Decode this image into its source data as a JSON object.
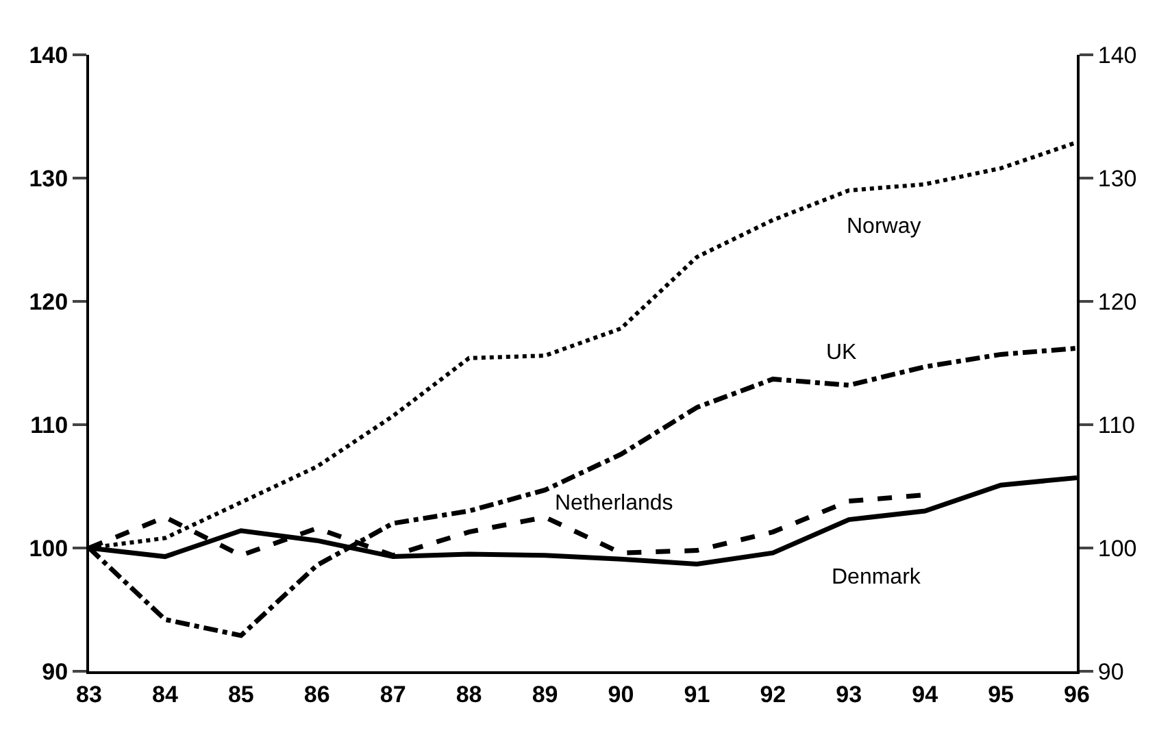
{
  "chart_data": {
    "type": "line",
    "x": [
      83,
      84,
      85,
      86,
      87,
      88,
      89,
      90,
      91,
      92,
      93,
      94,
      95,
      96
    ],
    "series": [
      {
        "name": "Norway",
        "color": "#000000",
        "line_style": "dotted",
        "values": [
          100,
          100.8,
          103.7,
          106.6,
          110.7,
          115.4,
          115.6,
          117.8,
          123.6,
          126.6,
          129,
          129.5,
          130.8,
          132.9
        ]
      },
      {
        "name": "UK",
        "color": "#000000",
        "line_style": "dashdot",
        "values": [
          100,
          94.2,
          92.9,
          98.6,
          102,
          103,
          104.7,
          107.6,
          111.4,
          113.7,
          113.2,
          114.7,
          115.7,
          116.2
        ]
      },
      {
        "name": "Netherlands",
        "color": "#000000",
        "line_style": "dashed",
        "values": [
          100,
          102.5,
          99.4,
          101.6,
          99.4,
          101.3,
          102.5,
          99.6,
          99.8,
          101.3,
          103.8,
          104.3,
          null,
          null
        ]
      },
      {
        "name": "Denmark",
        "color": "#000000",
        "line_style": "solid",
        "values": [
          100,
          99.3,
          101.4,
          100.6,
          99.3,
          99.5,
          99.4,
          99.1,
          98.7,
          99.6,
          102.3,
          103,
          105.1,
          105.7
        ]
      }
    ],
    "xlim": [
      83,
      96
    ],
    "xticks": [
      83,
      84,
      85,
      86,
      87,
      88,
      89,
      90,
      91,
      92,
      93,
      94,
      95,
      96
    ],
    "ylim": [
      90,
      140
    ],
    "yticks": [
      90,
      100,
      110,
      120,
      130,
      140
    ],
    "y2lim": [
      90,
      140
    ],
    "y2ticks": [
      90,
      100,
      110,
      120,
      130,
      140
    ],
    "grid": false,
    "legend": false,
    "marker": "none"
  }
}
